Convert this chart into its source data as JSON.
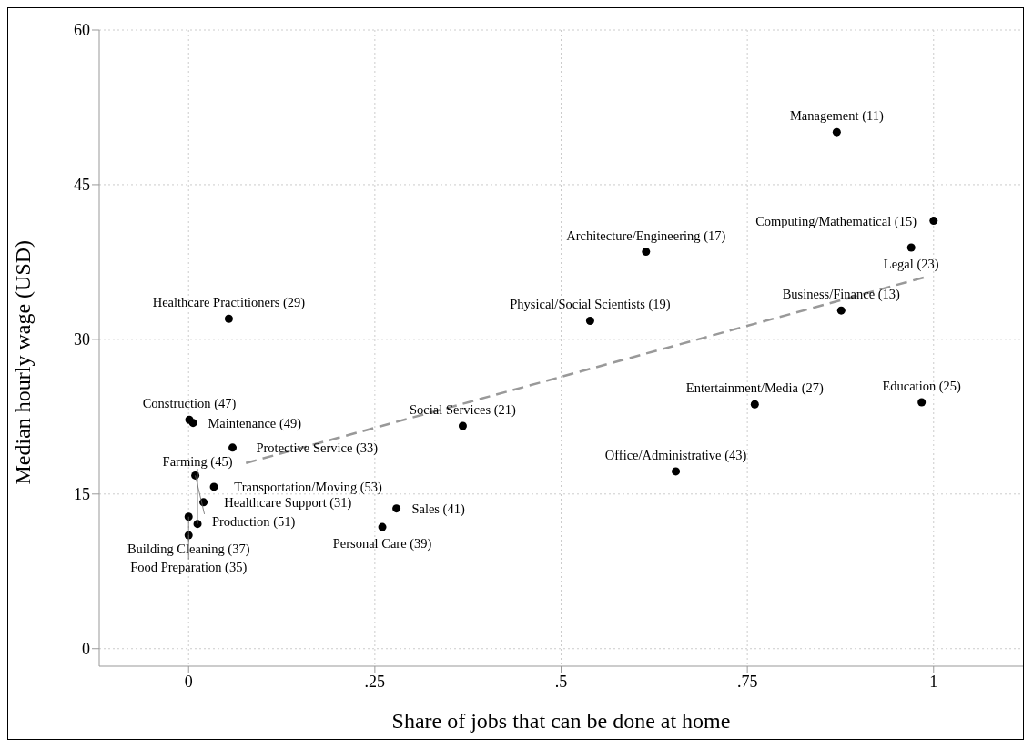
{
  "chart_data": {
    "type": "scatter",
    "xlabel": "Share of jobs that can be done at home",
    "ylabel": "Median hourly wage (USD)",
    "xlim": [
      -0.12,
      1.12
    ],
    "ylim": [
      -1.7,
      60
    ],
    "xticks": [
      0,
      {
        "value": 0.25,
        "label": ".25"
      },
      {
        "value": 0.5,
        "label": ".5"
      },
      {
        "value": 0.75,
        "label": ".75"
      },
      1
    ],
    "yticks": [
      0,
      15,
      30,
      45,
      60
    ],
    "grid": true,
    "marker": "circle",
    "series": [
      {
        "type": "scatter",
        "color": "#000000",
        "x": [
          0.87,
          1.0,
          0.97,
          0.614,
          0.876,
          0.539,
          0.054,
          0.76,
          0.984,
          0.368,
          0.654,
          0.001,
          0.006,
          0.059,
          0.009,
          0.034,
          0.02,
          0.0,
          0.012,
          0.0,
          0.279,
          0.26
        ],
        "values": [
          50.1,
          41.5,
          38.9,
          38.5,
          32.8,
          31.8,
          32.0,
          23.7,
          23.9,
          21.6,
          17.2,
          22.2,
          21.9,
          19.5,
          16.8,
          15.7,
          14.2,
          12.8,
          12.1,
          11.0,
          13.6,
          11.8
        ]
      },
      {
        "type": "line",
        "color": "#999999",
        "line_style": "dashed",
        "marker": "none",
        "x": [
          0.077,
          0.992
        ],
        "values": [
          18.0,
          36.1
        ]
      }
    ],
    "annotations": [
      {
        "text": "Management (11)",
        "x": 0.87,
        "y": 50.1
      },
      {
        "text": "Computing/Mathematical (15)",
        "x": 1.0,
        "y": 41.5
      },
      {
        "text": "Legal (23)",
        "x": 0.97,
        "y": 38.9
      },
      {
        "text": "Architecture/Engineering (17)",
        "x": 0.614,
        "y": 38.5
      },
      {
        "text": "Business/Finance (13)",
        "x": 0.876,
        "y": 32.8
      },
      {
        "text": "Physical/Social Scientists (19)",
        "x": 0.539,
        "y": 31.8
      },
      {
        "text": "Healthcare Practitioners (29)",
        "x": 0.054,
        "y": 32.0
      },
      {
        "text": "Entertainment/Media (27)",
        "x": 0.76,
        "y": 23.7
      },
      {
        "text": "Education (25)",
        "x": 0.984,
        "y": 23.9
      },
      {
        "text": "Social Services (21)",
        "x": 0.368,
        "y": 21.6
      },
      {
        "text": "Office/Administrative (43)",
        "x": 0.654,
        "y": 17.2
      },
      {
        "text": "Construction (47)",
        "x": 0.001,
        "y": 22.2
      },
      {
        "text": "Maintenance (49)",
        "x": 0.006,
        "y": 21.9
      },
      {
        "text": "Protective Service (33)",
        "x": 0.059,
        "y": 19.5
      },
      {
        "text": "Production (51)",
        "x": 0.009,
        "y": 16.8
      },
      {
        "text": "Transportation/Moving (53)",
        "x": 0.034,
        "y": 15.7
      },
      {
        "text": "Healthcare Support (31)",
        "x": 0.02,
        "y": 14.2
      },
      {
        "text": "Building Cleaning (37)",
        "x": 0.0,
        "y": 12.8
      },
      {
        "text": "Farming (45)",
        "x": 0.012,
        "y": 12.1
      },
      {
        "text": "Food Preparation (35)",
        "x": 0.0,
        "y": 11.0
      },
      {
        "text": "Sales (41)",
        "x": 0.279,
        "y": 13.6
      },
      {
        "text": "Personal Care (39)",
        "x": 0.26,
        "y": 11.8
      }
    ]
  }
}
